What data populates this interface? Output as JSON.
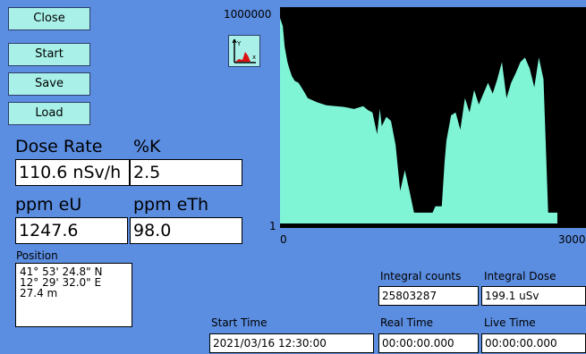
{
  "buttons": {
    "close": "Close",
    "start": "Start",
    "save": "Save",
    "load": "Load"
  },
  "dose_rate": {
    "label": "Dose Rate",
    "value": "110.6 nSv/h"
  },
  "potassium": {
    "label": "%K",
    "value": "2.5"
  },
  "uranium": {
    "label": "ppm eU",
    "value": "1247.6"
  },
  "thorium": {
    "label": "ppm eTh",
    "value": "98.0"
  },
  "position": {
    "label": "Position",
    "lat": "41° 53' 24.8\" N",
    "lon": "12° 29' 32.0\" E",
    "alt": "27.4 m"
  },
  "integral_counts": {
    "label": "Integral counts",
    "value": "25803287"
  },
  "integral_dose": {
    "label": "Integral Dose",
    "value": "199.1 uSv"
  },
  "start_time": {
    "label": "Start Time",
    "value": "2021/03/16 12:30:00"
  },
  "real_time": {
    "label": "Real Time",
    "value": "00:00:00.000"
  },
  "live_time": {
    "label": "Live Time",
    "value": "00:00:00.000"
  },
  "chart_toggle_icon": "spectrum-axes-icon",
  "chart_data": {
    "type": "area",
    "scale": "log",
    "ylim": [
      1,
      1000000
    ],
    "xlim": [
      0,
      3000
    ],
    "y_tick_labels": [
      "1000000",
      "1"
    ],
    "x_tick_labels": [
      "0",
      "3000"
    ],
    "fill_color": "#7ff5d6",
    "background_color": "#000000",
    "x": [
      0,
      30,
      50,
      80,
      100,
      130,
      160,
      200,
      250,
      300,
      400,
      500,
      600,
      700,
      800,
      900,
      950,
      1000,
      1050,
      1080,
      1100,
      1150,
      1200,
      1250,
      1300,
      1350,
      1400,
      1450,
      1500,
      1550,
      1600,
      1650,
      1680,
      1700,
      1720,
      1750,
      1780,
      1800,
      1850,
      1900,
      1950,
      2000,
      2050,
      2100,
      2150,
      2200,
      2250,
      2300,
      2350,
      2400,
      2450,
      2500,
      2550,
      2600,
      2650,
      2700,
      2750,
      2800,
      2850,
      2900,
      2950,
      3000
    ],
    "y": [
      500000,
      300000,
      80000,
      30000,
      20000,
      12000,
      9000,
      8000,
      5000,
      3000,
      2300,
      1900,
      1800,
      1700,
      1500,
      1800,
      1400,
      1200,
      300,
      1500,
      500,
      900,
      700,
      150,
      8,
      30,
      8,
      2,
      2,
      2,
      2,
      2,
      3,
      3,
      3,
      3,
      50,
      200,
      1000,
      1200,
      400,
      3000,
      1200,
      5000,
      2000,
      4000,
      8000,
      4000,
      10000,
      30000,
      3000,
      8000,
      15000,
      30000,
      40000,
      20000,
      6000,
      40000,
      10000,
      2,
      2,
      2
    ]
  }
}
